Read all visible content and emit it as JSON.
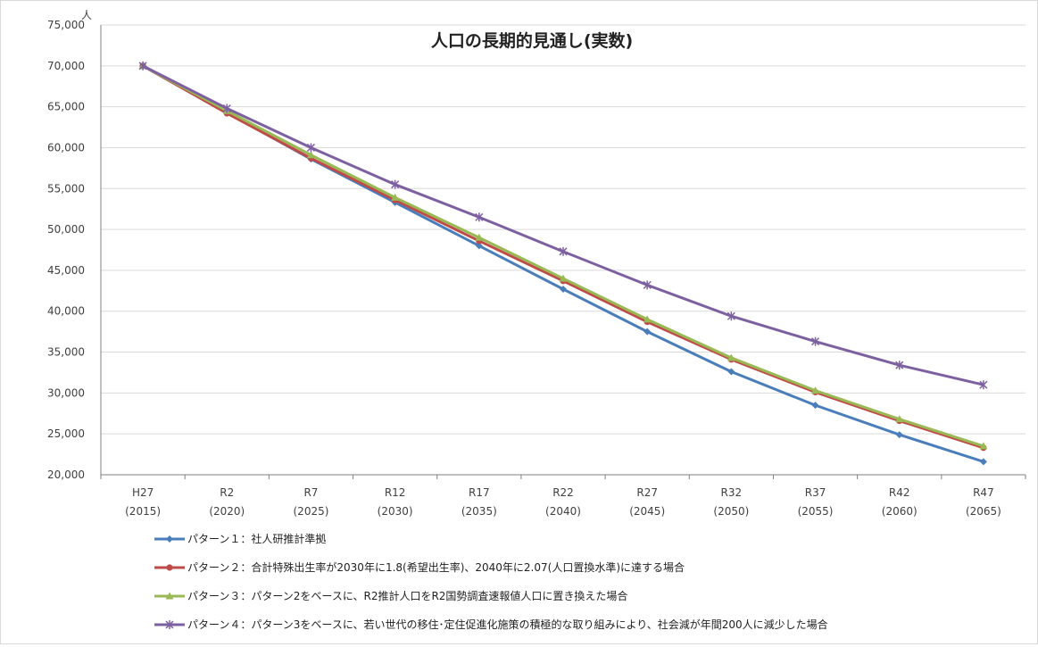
{
  "chart_data": {
    "type": "line",
    "title": "人口の長期的見通し(実数)",
    "ylabel": "人",
    "ylim": [
      20000,
      75000
    ],
    "ytick_step": 5000,
    "yticks": [
      "20,000",
      "25,000",
      "30,000",
      "35,000",
      "40,000",
      "45,000",
      "50,000",
      "55,000",
      "60,000",
      "65,000",
      "70,000",
      "75,000"
    ],
    "categories": [
      [
        "H27",
        "(2015)"
      ],
      [
        "R2",
        "(2020)"
      ],
      [
        "R7",
        "(2025)"
      ],
      [
        "R12",
        "(2030)"
      ],
      [
        "R17",
        "(2035)"
      ],
      [
        "R22",
        "(2040)"
      ],
      [
        "R27",
        "(2045)"
      ],
      [
        "R32",
        "(2050)"
      ],
      [
        "R37",
        "(2055)"
      ],
      [
        "R42",
        "(2060)"
      ],
      [
        "R47",
        "(2065)"
      ]
    ],
    "grid": true,
    "legend_position": "bottom",
    "series": [
      {
        "name": "パターン１：社人研推計準拠",
        "color": "#4a7ebb",
        "marker": "diamond",
        "values": [
          70000,
          64300,
          58600,
          53300,
          48000,
          42700,
          37500,
          32600,
          28500,
          24900,
          21600
        ]
      },
      {
        "name": "パターン２：合計特殊出生率が2030年に1.8(希望出生率)、2040年に2.07(人口置換水準)に達する場合",
        "color": "#be4b48",
        "marker": "circle",
        "values": [
          70000,
          64200,
          58700,
          53600,
          48600,
          43700,
          38700,
          34100,
          30100,
          26600,
          23300
        ]
      },
      {
        "name": "パターン３：パターン2をベースに、R2推計人口をR2国勢調査速報値人口に置き換えた場合",
        "color": "#98b954",
        "marker": "triangle",
        "values": [
          70000,
          64500,
          59100,
          53900,
          49000,
          44000,
          39000,
          34300,
          30300,
          26800,
          23500
        ]
      },
      {
        "name": "パターン４：パターン3をベースに、若い世代の移住･定住促進化施策の積極的な取り組みにより、社会減が年間200人に減少した場合",
        "color": "#7d60a0",
        "marker": "star",
        "values": [
          70000,
          64800,
          60000,
          55500,
          51500,
          47300,
          43200,
          39400,
          36300,
          33400,
          31000
        ]
      }
    ]
  }
}
